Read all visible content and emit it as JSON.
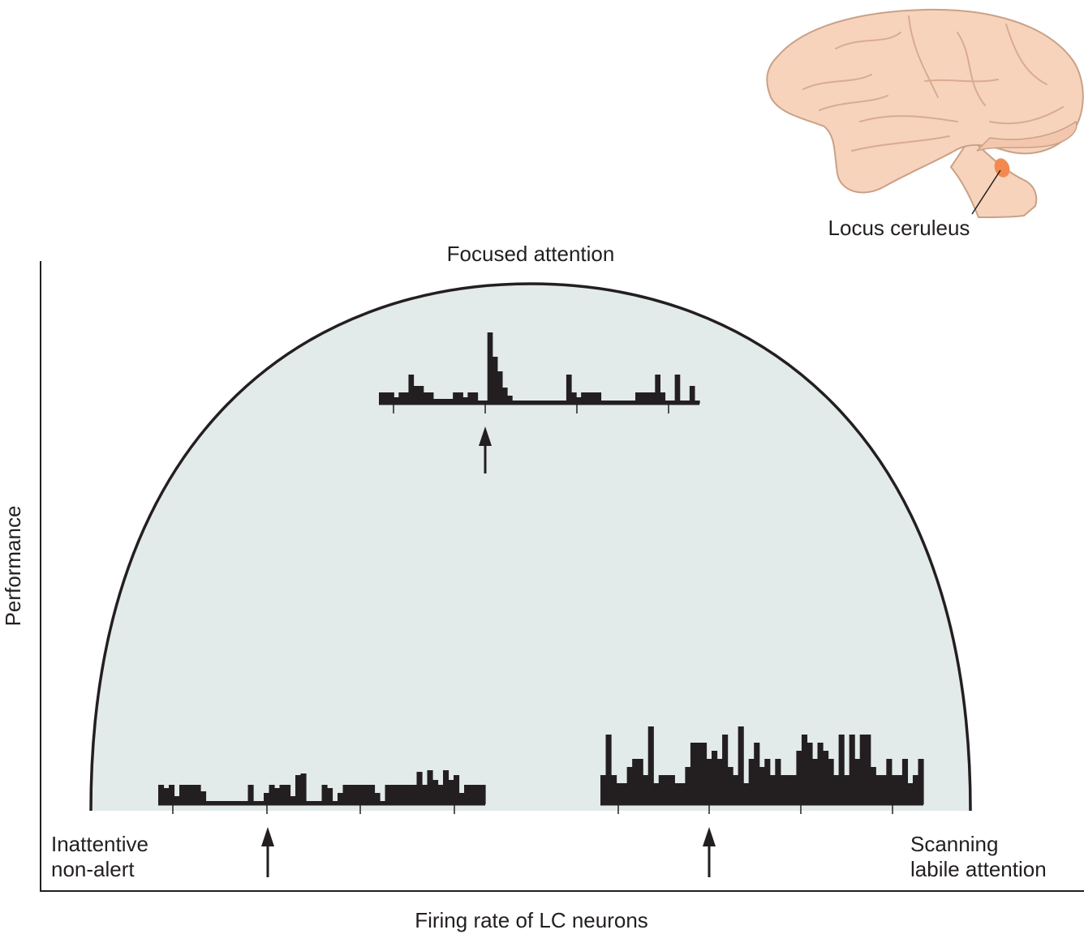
{
  "labels": {
    "focused": "Focused attention",
    "locus": "Locus ceruleus",
    "y_axis": "Performance",
    "x_axis": "Firing rate of LC neurons",
    "inattentive_line1": "Inattentive",
    "inattentive_line2": "non-alert",
    "scanning_line1": "Scanning",
    "scanning_line2": "labile attention"
  },
  "colors": {
    "dome_fill": "#e3eaea",
    "ink": "#231f20",
    "brain_fill": "#f7d3bc",
    "brain_stroke": "#c9a187",
    "locus_marker": "#f28a4f"
  },
  "histograms": [
    {
      "name": "focused-histogram",
      "heights": [
        14,
        14,
        14,
        8,
        14,
        14,
        36,
        22,
        22,
        14,
        14,
        6,
        6,
        6,
        6,
        14,
        14,
        8,
        14,
        14,
        4,
        4,
        88,
        58,
        40,
        20,
        10,
        4,
        4,
        4,
        4,
        4,
        4,
        4,
        4,
        4,
        4,
        4,
        36,
        14,
        8,
        14,
        14,
        14,
        14,
        4,
        4,
        4,
        4,
        4,
        4,
        4,
        14,
        14,
        14,
        14,
        36,
        14,
        4,
        4,
        36,
        4,
        4,
        22,
        4
      ]
    },
    {
      "name": "inattentive-histogram",
      "heights": [
        24,
        20,
        24,
        10,
        24,
        24,
        24,
        24,
        16,
        4,
        4,
        4,
        4,
        4,
        4,
        4,
        4,
        24,
        4,
        4,
        14,
        24,
        20,
        24,
        24,
        10,
        36,
        38,
        4,
        4,
        4,
        24,
        20,
        4,
        14,
        24,
        24,
        24,
        24,
        24,
        24,
        14,
        4,
        24,
        24,
        24,
        24,
        24,
        24,
        40,
        24,
        42,
        30,
        24,
        42,
        30,
        36,
        14,
        24,
        24,
        24,
        24
      ]
    },
    {
      "name": "scanning-histogram",
      "heights": [
        36,
        86,
        36,
        26,
        26,
        46,
        56,
        56,
        36,
        96,
        26,
        36,
        36,
        36,
        26,
        26,
        46,
        76,
        76,
        76,
        56,
        66,
        56,
        86,
        46,
        36,
        96,
        26,
        56,
        76,
        46,
        56,
        36,
        56,
        36,
        36,
        36,
        66,
        86,
        76,
        56,
        76,
        66,
        56,
        36,
        86,
        36,
        86,
        56,
        86,
        86,
        46,
        36,
        36,
        56,
        36,
        36,
        56,
        26,
        36,
        56
      ]
    }
  ]
}
